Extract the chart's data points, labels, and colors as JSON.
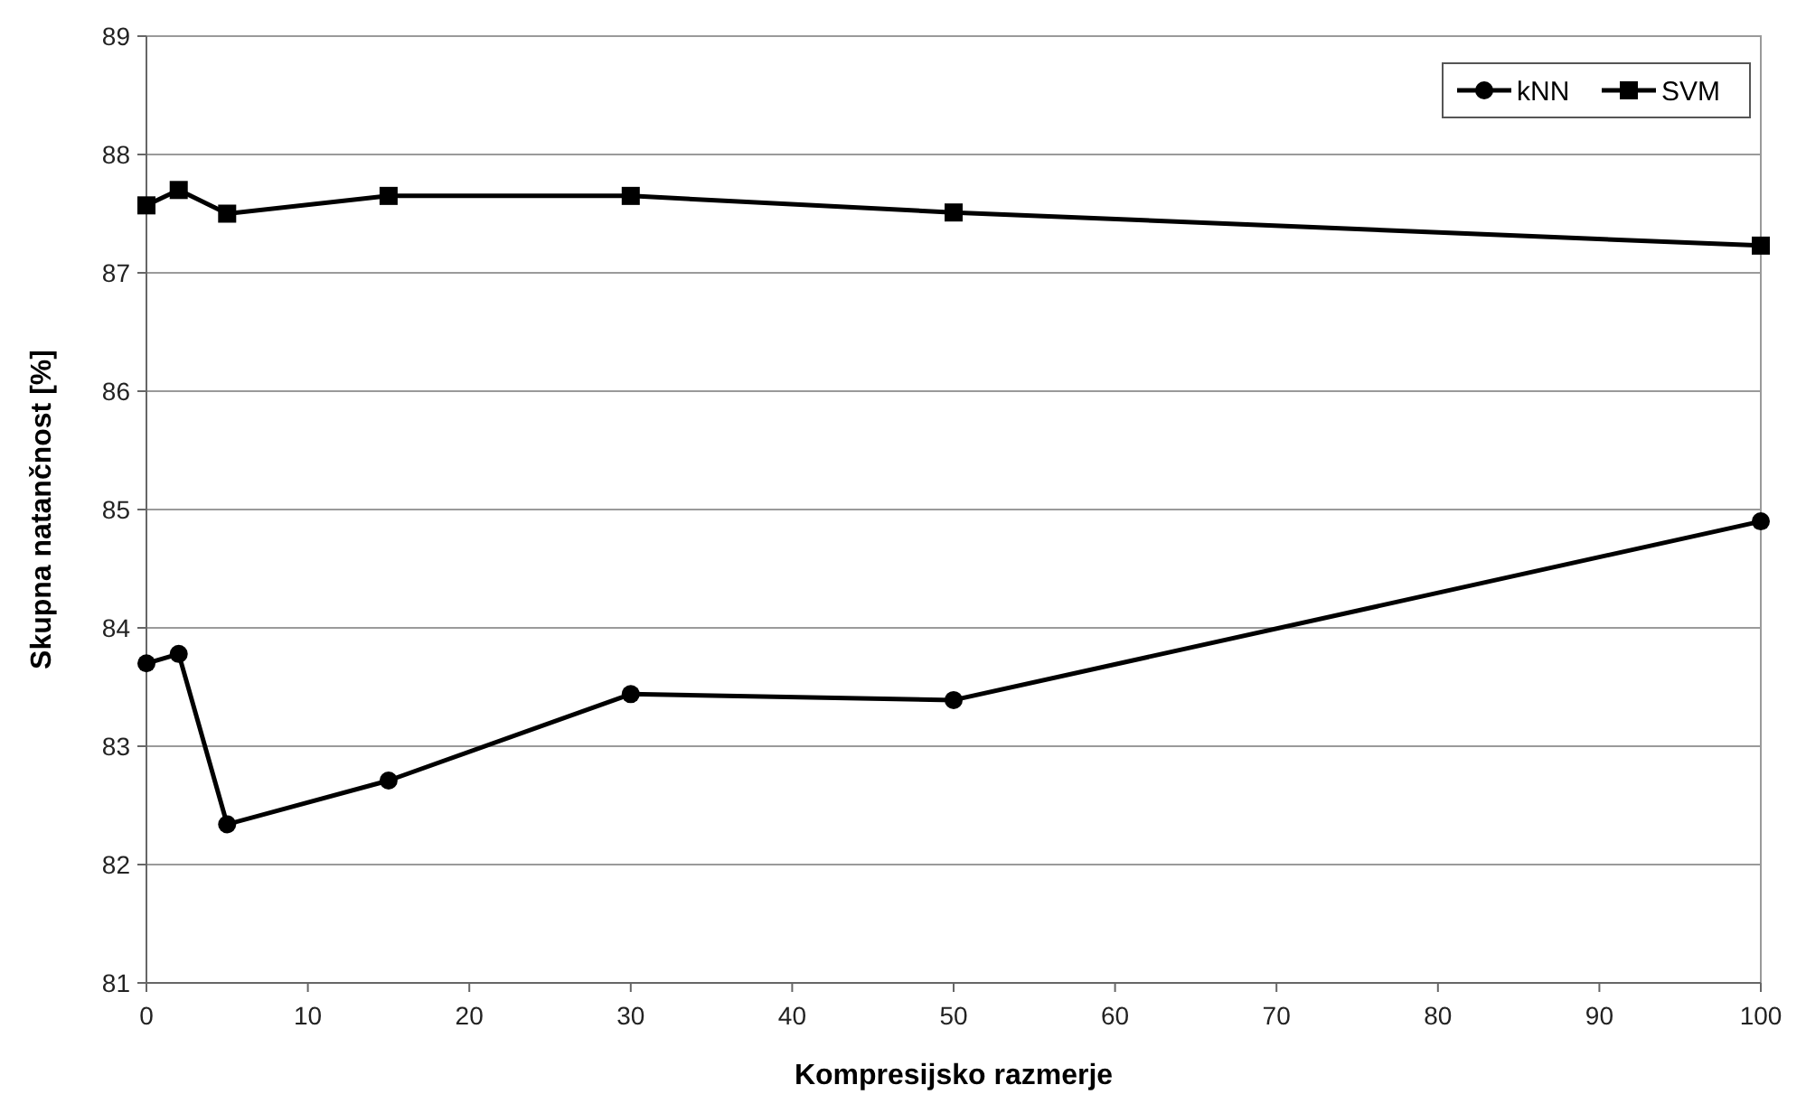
{
  "chart_data": {
    "type": "line",
    "xlabel": "Kompresijsko razmerje",
    "ylabel": "Skupna natančnost [%]",
    "x": [
      0,
      2,
      5,
      15,
      30,
      50,
      100
    ],
    "series": [
      {
        "name": "kNN",
        "color": "#000000",
        "marker": "circle",
        "values": [
          83.7,
          83.78,
          82.34,
          82.71,
          83.44,
          83.39,
          84.9
        ]
      },
      {
        "name": "SVM",
        "color": "#000000",
        "marker": "square",
        "values": [
          87.57,
          87.7,
          87.5,
          87.65,
          87.65,
          87.51,
          87.23
        ]
      }
    ],
    "xlim": [
      0,
      100
    ],
    "xticks": [
      0,
      10,
      20,
      30,
      40,
      50,
      60,
      70,
      80,
      90,
      100
    ],
    "ylim": [
      81,
      89
    ],
    "yticks": [
      81,
      82,
      83,
      84,
      85,
      86,
      87,
      88,
      89
    ],
    "grid": "y",
    "legend": "top right",
    "line_style": "solid"
  }
}
